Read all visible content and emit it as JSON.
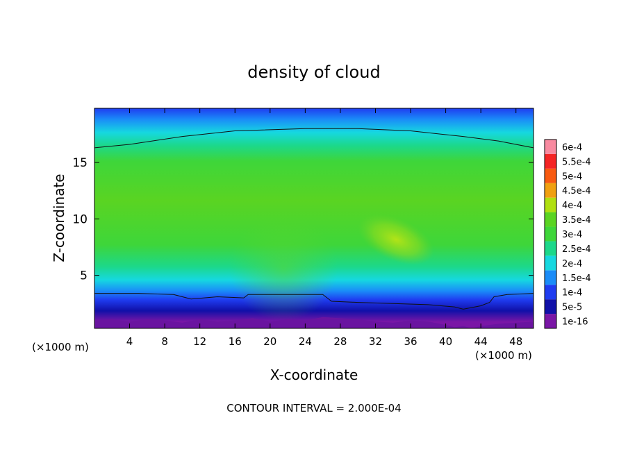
{
  "chart_data": {
    "type": "heatmap",
    "title": "density of cloud",
    "xlabel": "X-coordinate",
    "ylabel": "Z-coordinate",
    "x_unit_label": "(×1000 m)",
    "x_unit_label_right": "(×1000 m)",
    "xlim": [
      0,
      50
    ],
    "ylim": [
      0.3,
      19.8
    ],
    "x_ticks": [
      4,
      8,
      12,
      16,
      20,
      24,
      28,
      32,
      36,
      40,
      44,
      48
    ],
    "y_ticks": [
      5,
      10,
      15
    ],
    "footer": "CONTOUR INTERVAL = 2.000E-04",
    "colorbar": {
      "levels": [
        {
          "label": "1e-16",
          "color": "#7a16a6"
        },
        {
          "label": "5e-5",
          "color": "#1010a8"
        },
        {
          "label": "1e-4",
          "color": "#1f3cf0"
        },
        {
          "label": "1.5e-4",
          "color": "#1a8cf8"
        },
        {
          "label": "2e-4",
          "color": "#16d8e0"
        },
        {
          "label": "2.5e-4",
          "color": "#1cd88a"
        },
        {
          "label": "3e-4",
          "color": "#3ed63a"
        },
        {
          "label": "3.5e-4",
          "color": "#5ad422"
        },
        {
          "label": "4e-4",
          "color": "#b0e010"
        },
        {
          "label": "4.5e-4",
          "color": "#f0a010"
        },
        {
          "label": "5e-4",
          "color": "#f85a10"
        },
        {
          "label": "5.5e-4",
          "color": "#f42424"
        },
        {
          "label": "6e-4",
          "color": "#f88aa0"
        }
      ]
    },
    "contour_lines": [
      {
        "level": "1.5e-4 (upper)",
        "points": [
          [
            0,
            16.3
          ],
          [
            4,
            16.6
          ],
          [
            10,
            17.3
          ],
          [
            16,
            17.8
          ],
          [
            24,
            18.0
          ],
          [
            30,
            18.0
          ],
          [
            36,
            17.8
          ],
          [
            42,
            17.3
          ],
          [
            46,
            16.9
          ],
          [
            50,
            16.3
          ]
        ]
      },
      {
        "level": "1.5e-4 (lower)",
        "points": [
          [
            0,
            3.4
          ],
          [
            5,
            3.4
          ],
          [
            9,
            3.3
          ],
          [
            11,
            2.9
          ],
          [
            14,
            3.1
          ],
          [
            17,
            3.0
          ],
          [
            17.5,
            3.3
          ],
          [
            22,
            3.3
          ],
          [
            26,
            3.3
          ],
          [
            27,
            2.7
          ],
          [
            30,
            2.6
          ],
          [
            34,
            2.5
          ],
          [
            38,
            2.4
          ],
          [
            41,
            2.2
          ],
          [
            42,
            2.0
          ],
          [
            44,
            2.3
          ],
          [
            45,
            2.6
          ],
          [
            45.5,
            3.1
          ],
          [
            47,
            3.3
          ],
          [
            50,
            3.4
          ]
        ]
      }
    ]
  }
}
